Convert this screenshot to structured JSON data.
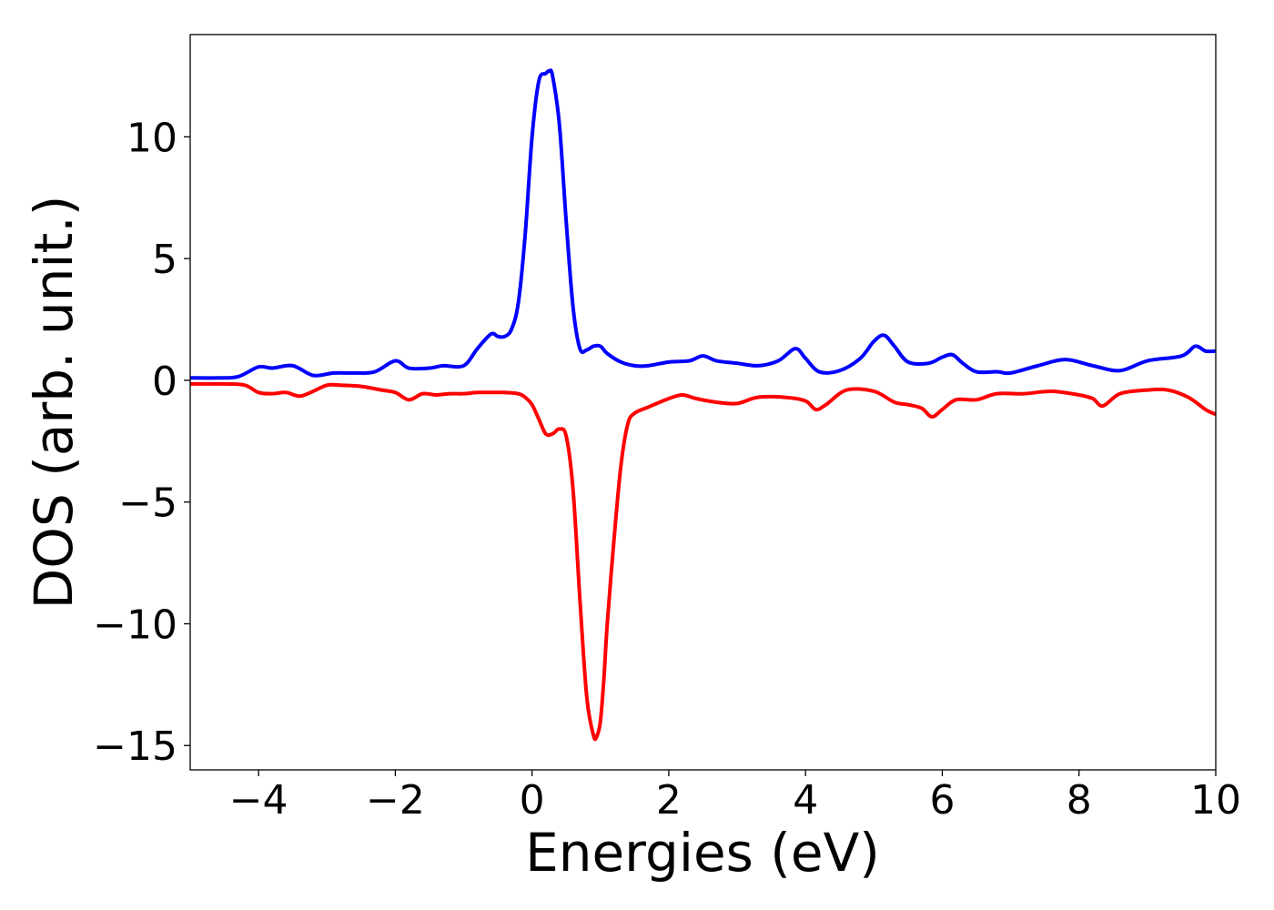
{
  "chart_data": {
    "type": "line",
    "title": "",
    "xlabel": "Energies (eV)",
    "ylabel": "DOS (arb. unit.)",
    "xlim": [
      -5,
      10
    ],
    "ylim": [
      -16,
      14.2
    ],
    "grid": false,
    "legend": "none",
    "x_ticks": [
      -4,
      -2,
      0,
      2,
      4,
      6,
      8,
      10
    ],
    "x_tick_labels": [
      "−4",
      "−2",
      "0",
      "2",
      "4",
      "6",
      "8",
      "10"
    ],
    "y_ticks": [
      -15,
      -10,
      -5,
      0,
      5,
      10
    ],
    "y_tick_labels": [
      "−15",
      "−10",
      "−5",
      "0",
      "5",
      "10"
    ],
    "series": [
      {
        "color": "#0000ff",
        "x": [
          -5,
          -4.6,
          -4.3,
          -4.0,
          -3.8,
          -3.5,
          -3.2,
          -2.9,
          -2.6,
          -2.3,
          -2.0,
          -1.8,
          -1.5,
          -1.3,
          -1.0,
          -0.8,
          -0.6,
          -0.5,
          -0.4,
          -0.3,
          -0.2,
          -0.1,
          0.0,
          0.1,
          0.2,
          0.25,
          0.3,
          0.4,
          0.5,
          0.6,
          0.7,
          0.8,
          0.9,
          1.0,
          1.1,
          1.3,
          1.5,
          1.7,
          2.0,
          2.3,
          2.5,
          2.7,
          3.0,
          3.3,
          3.6,
          3.85,
          4.0,
          4.2,
          4.5,
          4.8,
          5.0,
          5.15,
          5.3,
          5.5,
          5.8,
          6.0,
          6.15,
          6.3,
          6.5,
          6.8,
          7.0,
          7.4,
          7.8,
          8.2,
          8.6,
          9.0,
          9.5,
          9.7,
          9.85,
          10.0
        ],
        "y": [
          0.1,
          0.1,
          0.15,
          0.55,
          0.5,
          0.6,
          0.2,
          0.3,
          0.3,
          0.35,
          0.8,
          0.5,
          0.5,
          0.6,
          0.6,
          1.3,
          1.9,
          1.8,
          1.8,
          2.1,
          3.2,
          6.0,
          10.0,
          12.3,
          12.6,
          12.7,
          12.5,
          10.5,
          6.5,
          3.0,
          1.3,
          1.25,
          1.4,
          1.4,
          1.1,
          0.75,
          0.6,
          0.6,
          0.75,
          0.8,
          1.0,
          0.8,
          0.7,
          0.6,
          0.8,
          1.3,
          0.9,
          0.35,
          0.4,
          0.9,
          1.6,
          1.85,
          1.4,
          0.75,
          0.7,
          0.95,
          1.05,
          0.7,
          0.35,
          0.35,
          0.3,
          0.6,
          0.85,
          0.6,
          0.4,
          0.8,
          1.0,
          1.4,
          1.2,
          1.2
        ]
      },
      {
        "color": "#ff0000",
        "x": [
          -5,
          -4.5,
          -4.2,
          -4.0,
          -3.8,
          -3.6,
          -3.4,
          -3.2,
          -3.0,
          -2.8,
          -2.5,
          -2.2,
          -2.0,
          -1.8,
          -1.6,
          -1.4,
          -1.2,
          -1.0,
          -0.8,
          -0.6,
          -0.4,
          -0.2,
          -0.1,
          0.0,
          0.1,
          0.2,
          0.3,
          0.4,
          0.5,
          0.6,
          0.7,
          0.8,
          0.9,
          0.95,
          1.0,
          1.05,
          1.1,
          1.2,
          1.3,
          1.4,
          1.5,
          1.7,
          2.0,
          2.2,
          2.4,
          2.7,
          3.0,
          3.3,
          3.7,
          4.0,
          4.15,
          4.3,
          4.6,
          5.0,
          5.3,
          5.5,
          5.7,
          5.85,
          6.0,
          6.2,
          6.5,
          6.8,
          7.2,
          7.6,
          8.0,
          8.2,
          8.35,
          8.6,
          9.0,
          9.3,
          9.6,
          9.85,
          10.0
        ],
        "y": [
          -0.15,
          -0.15,
          -0.2,
          -0.5,
          -0.55,
          -0.5,
          -0.65,
          -0.45,
          -0.2,
          -0.2,
          -0.25,
          -0.4,
          -0.5,
          -0.8,
          -0.55,
          -0.6,
          -0.55,
          -0.55,
          -0.5,
          -0.5,
          -0.5,
          -0.55,
          -0.7,
          -1.0,
          -1.6,
          -2.2,
          -2.2,
          -2.0,
          -2.3,
          -4.5,
          -9.0,
          -13.0,
          -14.6,
          -14.6,
          -14.0,
          -12.3,
          -10.0,
          -6.5,
          -3.5,
          -1.8,
          -1.35,
          -1.1,
          -0.75,
          -0.6,
          -0.75,
          -0.9,
          -0.95,
          -0.7,
          -0.7,
          -0.85,
          -1.2,
          -1.0,
          -0.4,
          -0.45,
          -0.9,
          -1.0,
          -1.15,
          -1.5,
          -1.2,
          -0.8,
          -0.8,
          -0.55,
          -0.55,
          -0.45,
          -0.6,
          -0.75,
          -1.05,
          -0.55,
          -0.4,
          -0.4,
          -0.7,
          -1.2,
          -1.4
        ]
      }
    ]
  }
}
